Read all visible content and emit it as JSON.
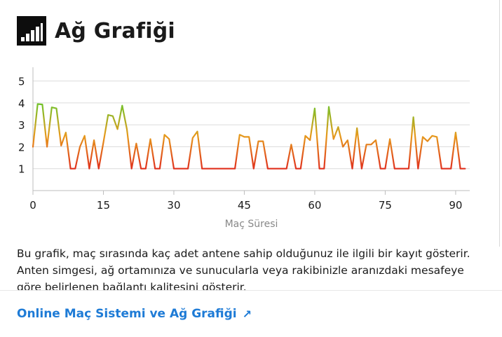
{
  "header": {
    "title": "Ağ Grafiği",
    "icon": "signal-bars-icon"
  },
  "chart_data": {
    "type": "line",
    "xlabel": "Maç Süresi",
    "ylabel": "",
    "xlim": [
      0,
      93
    ],
    "ylim": [
      0,
      5.5
    ],
    "xticks": [
      0,
      15,
      30,
      45,
      60,
      75,
      90
    ],
    "yticks": [
      1,
      2,
      3,
      4,
      5
    ],
    "grid": "horizontal",
    "color_scale": {
      "low": "#e0321e",
      "high": "#6fc42c"
    },
    "series": [
      {
        "points": [
          [
            0,
            2.0
          ],
          [
            1,
            3.95
          ],
          [
            2,
            3.93
          ],
          [
            3,
            2.0
          ],
          [
            4,
            3.8
          ],
          [
            5,
            3.75
          ],
          [
            6,
            2.05
          ],
          [
            7,
            2.65
          ],
          [
            8,
            1.0
          ],
          [
            9,
            1.0
          ],
          [
            10,
            2.0
          ],
          [
            11,
            2.5
          ],
          [
            12,
            1.0
          ],
          [
            13,
            2.3
          ],
          [
            14,
            1.0
          ],
          [
            15,
            2.2
          ],
          [
            16,
            3.45
          ],
          [
            17,
            3.4
          ],
          [
            18,
            2.8
          ],
          [
            19,
            3.88
          ],
          [
            20,
            2.8
          ],
          [
            21,
            1.0
          ],
          [
            22,
            2.15
          ],
          [
            23,
            1.0
          ],
          [
            24,
            1.0
          ],
          [
            25,
            2.35
          ],
          [
            26,
            1.0
          ],
          [
            27,
            1.0
          ],
          [
            28,
            2.55
          ],
          [
            29,
            2.35
          ],
          [
            30,
            1.0
          ],
          [
            31,
            1.0
          ],
          [
            32,
            1.0
          ],
          [
            33,
            1.0
          ],
          [
            34,
            2.4
          ],
          [
            35,
            2.7
          ],
          [
            36,
            1.0
          ],
          [
            37,
            1.0
          ],
          [
            38,
            1.0
          ],
          [
            39,
            1.0
          ],
          [
            40,
            1.0
          ],
          [
            41,
            1.0
          ],
          [
            42,
            1.0
          ],
          [
            43,
            1.0
          ],
          [
            44,
            2.55
          ],
          [
            45,
            2.45
          ],
          [
            46,
            2.45
          ],
          [
            47,
            1.0
          ],
          [
            48,
            2.25
          ],
          [
            49,
            2.25
          ],
          [
            50,
            1.0
          ],
          [
            51,
            1.0
          ],
          [
            52,
            1.0
          ],
          [
            53,
            1.0
          ],
          [
            54,
            1.0
          ],
          [
            55,
            2.1
          ],
          [
            56,
            1.0
          ],
          [
            57,
            1.0
          ],
          [
            58,
            2.5
          ],
          [
            59,
            2.3
          ],
          [
            60,
            3.75
          ],
          [
            61,
            1.0
          ],
          [
            62,
            1.0
          ],
          [
            63,
            3.82
          ],
          [
            64,
            2.35
          ],
          [
            65,
            2.9
          ],
          [
            66,
            2.0
          ],
          [
            67,
            2.3
          ],
          [
            68,
            1.0
          ],
          [
            69,
            2.85
          ],
          [
            70,
            1.0
          ],
          [
            71,
            2.1
          ],
          [
            72,
            2.1
          ],
          [
            73,
            2.3
          ],
          [
            74,
            1.0
          ],
          [
            75,
            1.0
          ],
          [
            76,
            2.35
          ],
          [
            77,
            1.0
          ],
          [
            78,
            1.0
          ],
          [
            79,
            1.0
          ],
          [
            80,
            1.0
          ],
          [
            81,
            3.35
          ],
          [
            82,
            1.0
          ],
          [
            83,
            2.45
          ],
          [
            84,
            2.25
          ],
          [
            85,
            2.5
          ],
          [
            86,
            2.45
          ],
          [
            87,
            1.0
          ],
          [
            88,
            1.0
          ],
          [
            89,
            1.0
          ],
          [
            90,
            2.65
          ],
          [
            91,
            1.0
          ],
          [
            92,
            1.0
          ]
        ]
      }
    ]
  },
  "description": {
    "line1": "Bu grafik, maç sırasında kaç adet antene sahip olduğunuz ile ilgili bir kayıt gösterir.",
    "line2": "Anten simgesi, ağ ortamınıza ve sunucularla veya rakibinizle aranızdaki mesafeye",
    "line3": "göre belirlenen bağlantı kalitesini gösterir."
  },
  "footer": {
    "link_label": "Online Maç Sistemi ve Ağ Grafiği",
    "link_icon": "external-arrow-icon"
  }
}
